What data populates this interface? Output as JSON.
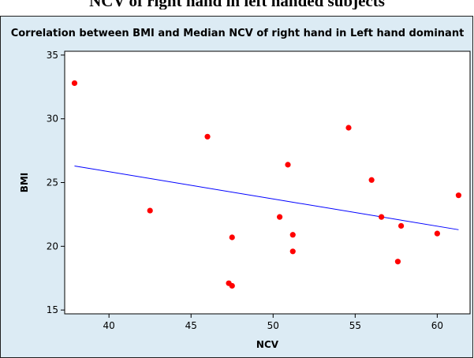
{
  "page": {
    "heading": "NCV of right hand in left handed subjects"
  },
  "colors": {
    "background": "#dcebf4",
    "plot_area": "#ffffff",
    "points": "#ff0000",
    "fit_line": "#0000ff"
  },
  "chart_data": {
    "type": "scatter",
    "title": "Correlation between BMI and Median NCV of right hand in Left hand dominant",
    "xlabel": "NCV",
    "ylabel": "BMI",
    "xlim": [
      37.3,
      62.0
    ],
    "ylim": [
      14.7,
      35.3
    ],
    "xticks": [
      40,
      45,
      50,
      55,
      60
    ],
    "yticks": [
      15,
      20,
      25,
      30,
      35
    ],
    "grid": false,
    "points": [
      {
        "x": 37.9,
        "y": 32.8
      },
      {
        "x": 42.5,
        "y": 22.8
      },
      {
        "x": 46.0,
        "y": 28.6
      },
      {
        "x": 47.3,
        "y": 17.1
      },
      {
        "x": 47.5,
        "y": 16.9
      },
      {
        "x": 47.5,
        "y": 20.7
      },
      {
        "x": 50.4,
        "y": 22.3
      },
      {
        "x": 50.9,
        "y": 26.4
      },
      {
        "x": 51.2,
        "y": 20.9
      },
      {
        "x": 51.2,
        "y": 19.6
      },
      {
        "x": 54.6,
        "y": 29.3
      },
      {
        "x": 56.0,
        "y": 25.2
      },
      {
        "x": 56.6,
        "y": 22.3
      },
      {
        "x": 57.6,
        "y": 18.8
      },
      {
        "x": 57.8,
        "y": 21.6
      },
      {
        "x": 60.0,
        "y": 21.0
      },
      {
        "x": 61.3,
        "y": 24.0
      }
    ],
    "fit_line": {
      "x": [
        37.9,
        61.3
      ],
      "y": [
        26.3,
        21.3
      ]
    }
  }
}
